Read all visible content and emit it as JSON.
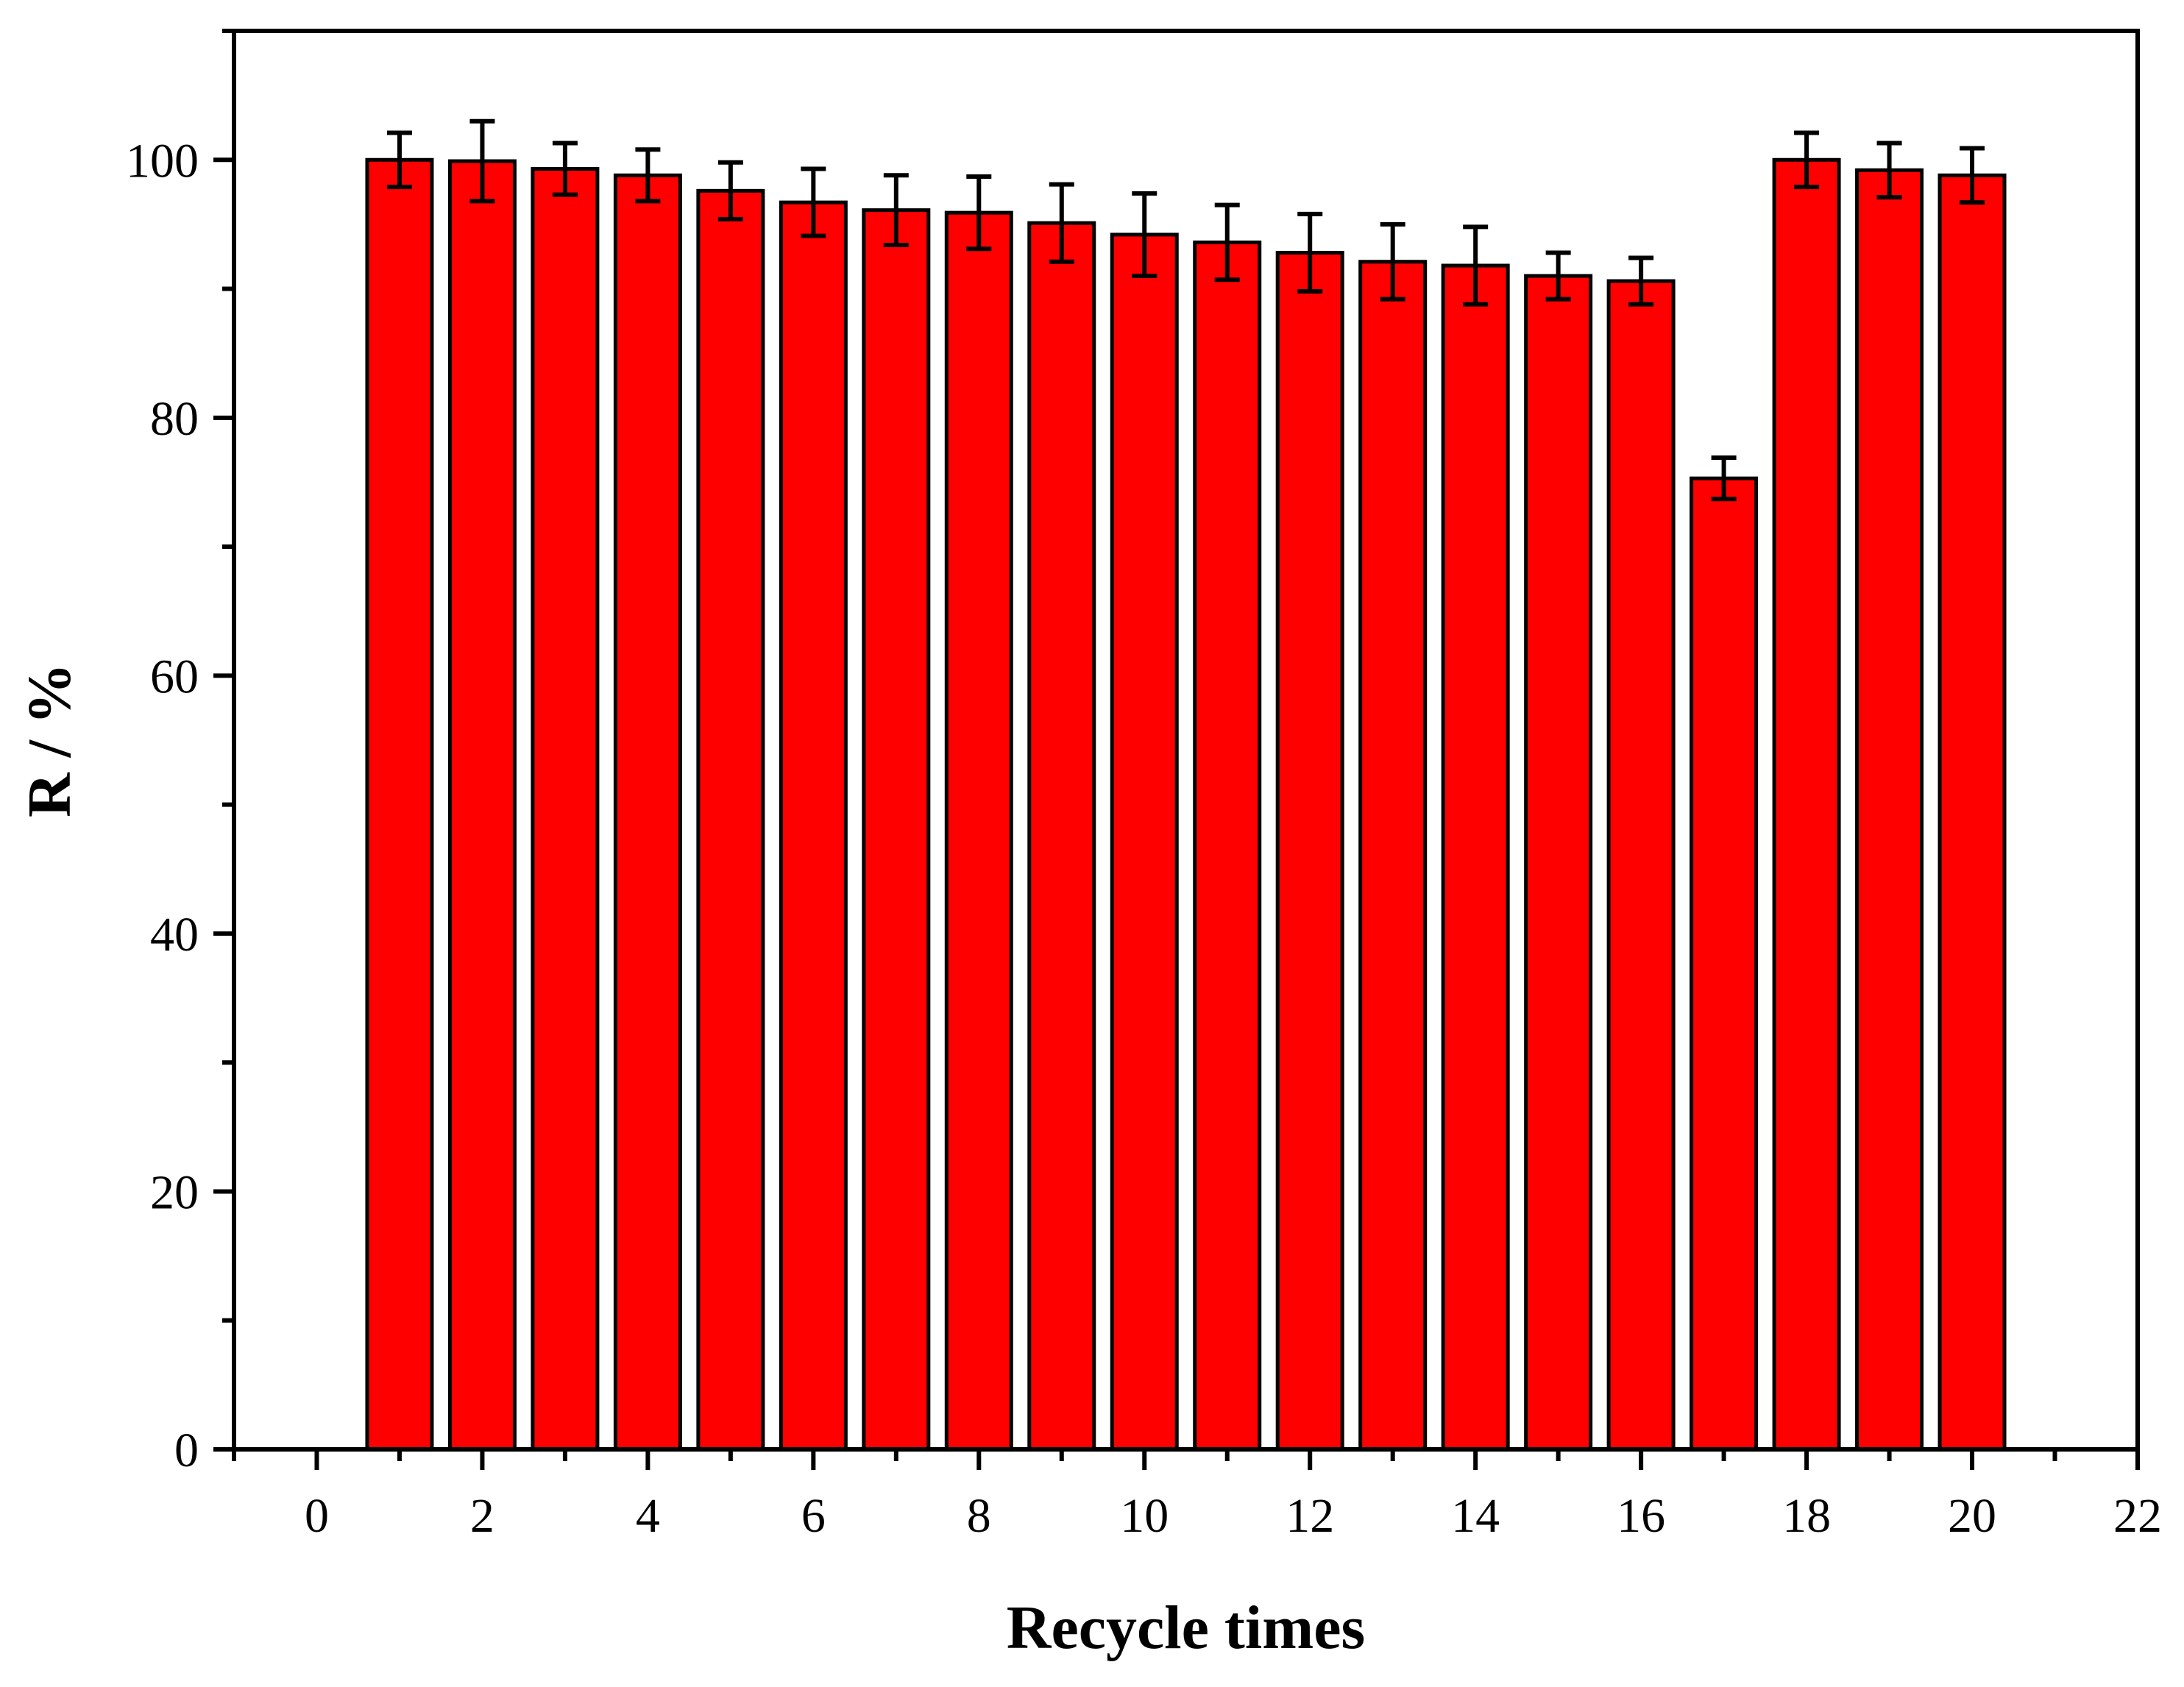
{
  "chart_data": {
    "type": "bar",
    "title": "",
    "xlabel": "Recycle times",
    "ylabel": "R / %",
    "xlim": [
      -1,
      22
    ],
    "ylim": [
      0,
      110
    ],
    "x_ticks": [
      "0",
      "2",
      "4",
      "6",
      "8",
      "10",
      "12",
      "14",
      "16",
      "18",
      "20",
      "22"
    ],
    "y_ticks": [
      "0",
      "20",
      "40",
      "60",
      "80",
      "100"
    ],
    "grid": false,
    "legend": "none",
    "bar_color": "#ff0000",
    "edge_color": "#000000",
    "series": [
      {
        "x": [
          1,
          2,
          3,
          4,
          5,
          6,
          7,
          8,
          9,
          10,
          11,
          12,
          13,
          14,
          15,
          16,
          17,
          18,
          19,
          20
        ],
        "values": [
          100,
          99.9,
          99.3,
          98.8,
          97.6,
          96.7,
          96.1,
          95.9,
          95.1,
          94.2,
          93.6,
          92.8,
          92.1,
          91.8,
          91.0,
          90.6,
          75.3,
          100,
          99.2,
          98.8
        ],
        "errors": [
          2.1,
          3.1,
          2.0,
          2.0,
          2.2,
          2.6,
          2.7,
          2.8,
          3.0,
          3.2,
          2.9,
          3.0,
          2.9,
          3.0,
          1.8,
          1.8,
          1.6,
          2.1,
          2.1,
          2.1
        ]
      }
    ]
  }
}
